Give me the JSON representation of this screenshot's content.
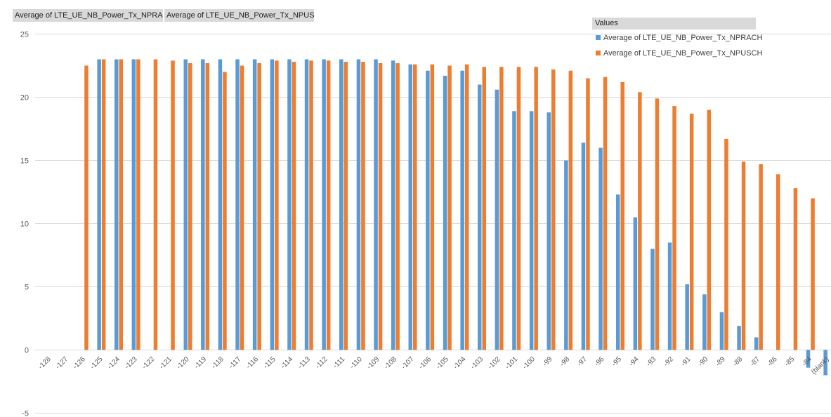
{
  "field_buttons": [
    "Average of LTE_UE_NB_Power_Tx_NPRACH",
    "Average of LTE_UE_NB_Power_Tx_NPUSCH"
  ],
  "legend": {
    "header": "Values",
    "placement": "top-right"
  },
  "chart_data": {
    "type": "bar",
    "grid": true,
    "ylim": [
      -5,
      25
    ],
    "yticks": [
      -5,
      0,
      5,
      10,
      15,
      20,
      25
    ],
    "categories": [
      "-128",
      "-127",
      "-126",
      "-125",
      "-124",
      "-123",
      "-122",
      "-121",
      "-120",
      "-119",
      "-118",
      "-117",
      "-116",
      "-115",
      "-114",
      "-113",
      "-112",
      "-111",
      "-110",
      "-109",
      "-108",
      "-107",
      "-106",
      "-105",
      "-104",
      "-103",
      "-102",
      "-101",
      "-100",
      "-99",
      "-98",
      "-97",
      "-96",
      "-95",
      "-94",
      "-93",
      "-92",
      "-91",
      "-90",
      "-89",
      "-88",
      "-87",
      "-86",
      "-85",
      "-84",
      "(blank)"
    ],
    "series": [
      {
        "name": "Average of LTE_UE_NB_Power_Tx_NPRACH",
        "color": "#5b9bd5",
        "values": [
          null,
          null,
          null,
          23,
          23,
          23,
          null,
          null,
          23,
          23,
          23,
          23,
          23,
          23,
          23,
          23,
          23,
          23,
          23,
          23,
          22.9,
          22.6,
          22.1,
          21.7,
          22.1,
          21,
          20.6,
          18.9,
          18.9,
          18.8,
          15,
          16.4,
          16,
          12.3,
          10.5,
          8,
          8.5,
          5.2,
          4.4,
          3,
          1.9,
          1,
          null,
          null,
          -1.4,
          -2
        ]
      },
      {
        "name": "Average of LTE_UE_NB_Power_Tx_NPUSCH",
        "color": "#ed7d31",
        "values": [
          null,
          null,
          22.5,
          23,
          23,
          23,
          23,
          22.9,
          22.7,
          22.7,
          22,
          22.5,
          22.7,
          22.9,
          22.8,
          22.9,
          22.9,
          22.8,
          22.8,
          22.7,
          22.7,
          22.6,
          22.6,
          22.5,
          22.6,
          22.4,
          22.4,
          22.4,
          22.4,
          22.2,
          22.1,
          21.5,
          21.6,
          21.2,
          20.4,
          19.9,
          19.3,
          18.7,
          19,
          16.7,
          14.9,
          14.7,
          13.9,
          12.8,
          12,
          null
        ]
      }
    ]
  }
}
